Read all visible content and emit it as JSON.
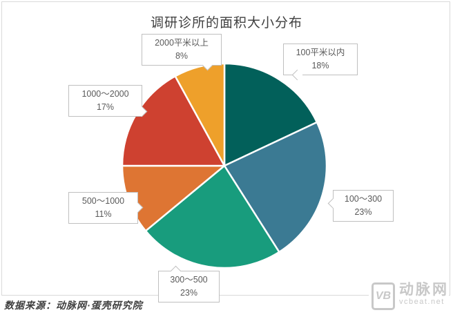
{
  "title": "调研诊所的面积大小分布",
  "source_text": "数据来源：动脉网·蛋壳研究院",
  "watermark": {
    "logo": "VB",
    "brand": "动脉网",
    "site": "vcbeat.net"
  },
  "chart_data": {
    "type": "pie",
    "title": "调研诊所的面积大小分布",
    "start_angle_deg": -90,
    "direction": "clockwise",
    "unit": "percent",
    "slice_border_color": "#ffffff",
    "slices": [
      {
        "label": "100平米以内",
        "value": 18,
        "pct_text": "18%",
        "color": "#02605a"
      },
      {
        "label": "100～300",
        "value": 23,
        "pct_text": "23%",
        "color": "#3b7a93"
      },
      {
        "label": "300～500",
        "value": 23,
        "pct_text": "23%",
        "color": "#189c7d"
      },
      {
        "label": "500～1000",
        "value": 11,
        "pct_text": "11%",
        "color": "#de7533"
      },
      {
        "label": "1000～2000",
        "value": 17,
        "pct_text": "17%",
        "color": "#ce4130"
      },
      {
        "label": "2000平米以上",
        "value": 8,
        "pct_text": "8%",
        "color": "#eea02b"
      }
    ]
  }
}
